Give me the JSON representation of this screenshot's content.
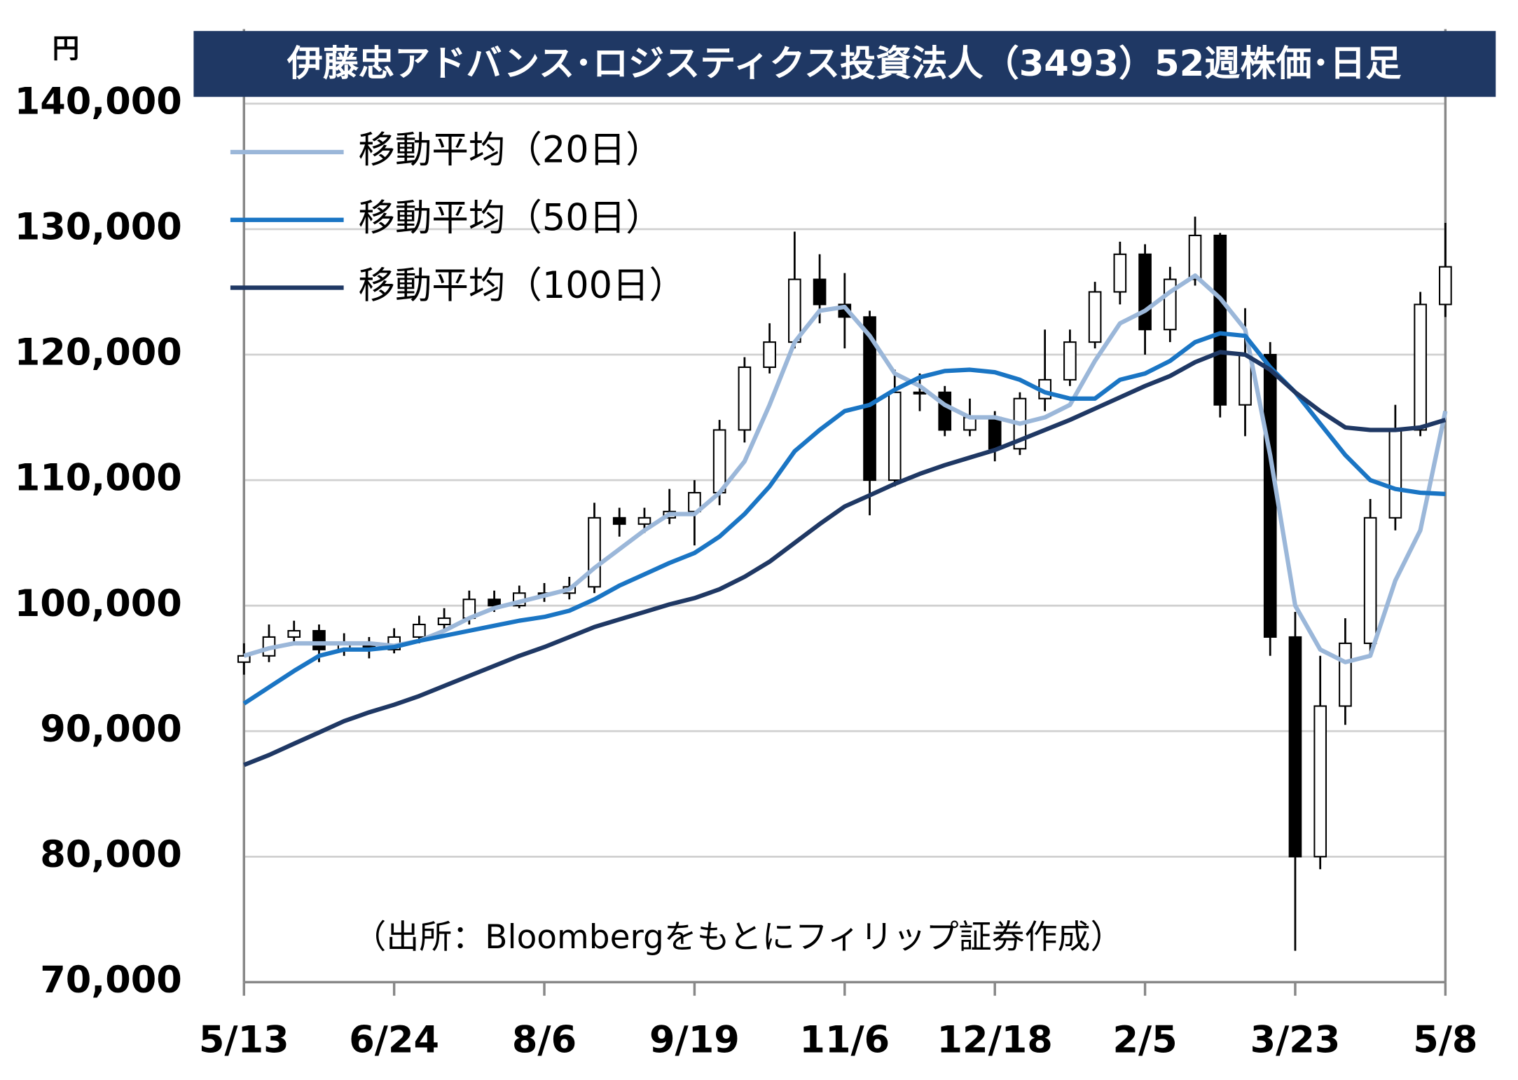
{
  "chart_data": {
    "type": "candlestick",
    "title": "伊藤忠アドバンス･ロジスティクス投資法人（3493）52週株価･日足",
    "y_unit": "円",
    "source": "（出所：Bloombergをもとにフィリップ証券作成）",
    "categories": [
      "5/13",
      null,
      null,
      null,
      null,
      null,
      "6/24",
      null,
      null,
      null,
      null,
      null,
      "8/6",
      null,
      null,
      null,
      null,
      null,
      "9/19",
      null,
      null,
      null,
      null,
      null,
      "11/6",
      null,
      null,
      null,
      null,
      null,
      "12/18",
      null,
      null,
      null,
      null,
      null,
      "2/5",
      null,
      null,
      null,
      null,
      null,
      "3/23",
      null,
      null,
      null,
      null,
      null,
      "5/8"
    ],
    "open": [
      95500,
      96000,
      97500,
      98000,
      96500,
      97000,
      96500,
      97500,
      98500,
      99000,
      100500,
      100000,
      101000,
      101000,
      101500,
      107000,
      106500,
      107000,
      107500,
      109000,
      114000,
      119000,
      121000,
      126000,
      124000,
      123000,
      110000,
      117000,
      117000,
      114000,
      115000,
      112500,
      116500,
      118000,
      121000,
      125000,
      128000,
      122000,
      126000,
      129500,
      116000,
      120000,
      97500,
      80000,
      92000,
      97000,
      107000,
      114000,
      124000
    ],
    "high": [
      97000,
      98500,
      98800,
      98500,
      97800,
      97500,
      98200,
      99200,
      99800,
      101200,
      101200,
      101600,
      101800,
      102300,
      108200,
      107800,
      107800,
      109300,
      110000,
      114800,
      119800,
      122500,
      129800,
      128000,
      126500,
      123500,
      118800,
      118500,
      117500,
      116500,
      115500,
      117000,
      122000,
      122000,
      125800,
      129000,
      128800,
      127000,
      131000,
      129700,
      123700,
      121000,
      99500,
      96000,
      99000,
      108500,
      116000,
      125000,
      130500
    ],
    "low": [
      94500,
      95500,
      97000,
      95500,
      96000,
      95800,
      96200,
      97000,
      98000,
      98500,
      99500,
      99800,
      100300,
      100500,
      101000,
      105500,
      105800,
      106500,
      104800,
      108000,
      113000,
      118500,
      120500,
      122500,
      120500,
      107200,
      109500,
      115500,
      113500,
      113500,
      111500,
      112000,
      115500,
      117500,
      120500,
      124000,
      120000,
      121000,
      125500,
      115000,
      113500,
      96000,
      72500,
      79000,
      90500,
      96000,
      106000,
      113500,
      123000
    ],
    "close": [
      96000,
      97500,
      98000,
      96500,
      97000,
      96500,
      97500,
      98500,
      99000,
      100500,
      100000,
      101000,
      101000,
      101500,
      107000,
      106500,
      107000,
      107500,
      109000,
      114000,
      119000,
      121000,
      126000,
      124000,
      123000,
      110000,
      117000,
      117000,
      114000,
      115000,
      112500,
      116500,
      118000,
      121000,
      125000,
      128000,
      122000,
      126000,
      129500,
      116000,
      120000,
      97500,
      80000,
      92000,
      97000,
      107000,
      114000,
      124000,
      127000
    ],
    "up_color": "#ffffff",
    "down_color": "#000000",
    "series": [
      {
        "name": "移動平均（20日）",
        "color": "#9bb7d9",
        "values": [
          96000,
          96600,
          97000,
          97000,
          97000,
          97000,
          96800,
          97200,
          98000,
          99000,
          99800,
          100300,
          100800,
          101300,
          103000,
          104500,
          106000,
          107300,
          107300,
          109000,
          111500,
          116000,
          121000,
          123500,
          123800,
          121500,
          118500,
          117500,
          116000,
          115000,
          115000,
          114500,
          115000,
          116000,
          119500,
          122500,
          123500,
          125000,
          126300,
          124500,
          122000,
          112000,
          100000,
          96500,
          95500,
          96000,
          102000,
          106000,
          115500
        ]
      },
      {
        "name": "移動平均（50日）",
        "color": "#1a75c4",
        "values": [
          92200,
          93500,
          94800,
          96000,
          96500,
          96500,
          96700,
          97200,
          97600,
          98000,
          98400,
          98800,
          99100,
          99600,
          100500,
          101600,
          102500,
          103400,
          104200,
          105500,
          107300,
          109500,
          112300,
          114000,
          115500,
          116000,
          117200,
          118200,
          118700,
          118800,
          118600,
          118000,
          117000,
          116500,
          116500,
          118000,
          118500,
          119500,
          121000,
          121700,
          121500,
          119000,
          117000,
          114500,
          112000,
          110000,
          109300,
          109000,
          108900
        ]
      },
      {
        "name": "移動平均（100日）",
        "color": "#1f3864",
        "values": [
          87300,
          88100,
          89000,
          89900,
          90800,
          91500,
          92100,
          92800,
          93600,
          94400,
          95200,
          96000,
          96700,
          97500,
          98300,
          98900,
          99500,
          100100,
          100600,
          101300,
          102300,
          103500,
          105000,
          106500,
          107900,
          108800,
          109700,
          110500,
          111200,
          111800,
          112400,
          113200,
          114000,
          114800,
          115700,
          116600,
          117500,
          118300,
          119400,
          120200,
          120000,
          118800,
          117000,
          115500,
          114200,
          114000,
          114000,
          114200,
          114800
        ]
      }
    ],
    "ylim": [
      70000,
      140000
    ],
    "yticks": [
      {
        "value": 70000,
        "label": "70,000"
      },
      {
        "value": 80000,
        "label": "80,000"
      },
      {
        "value": 90000,
        "label": "90,000"
      },
      {
        "value": 100000,
        "label": "100,000"
      },
      {
        "value": 110000,
        "label": "110,000"
      },
      {
        "value": 120000,
        "label": "120,000"
      },
      {
        "value": 130000,
        "label": "130,000"
      },
      {
        "value": 140000,
        "label": "140,000"
      }
    ],
    "grid": true
  }
}
